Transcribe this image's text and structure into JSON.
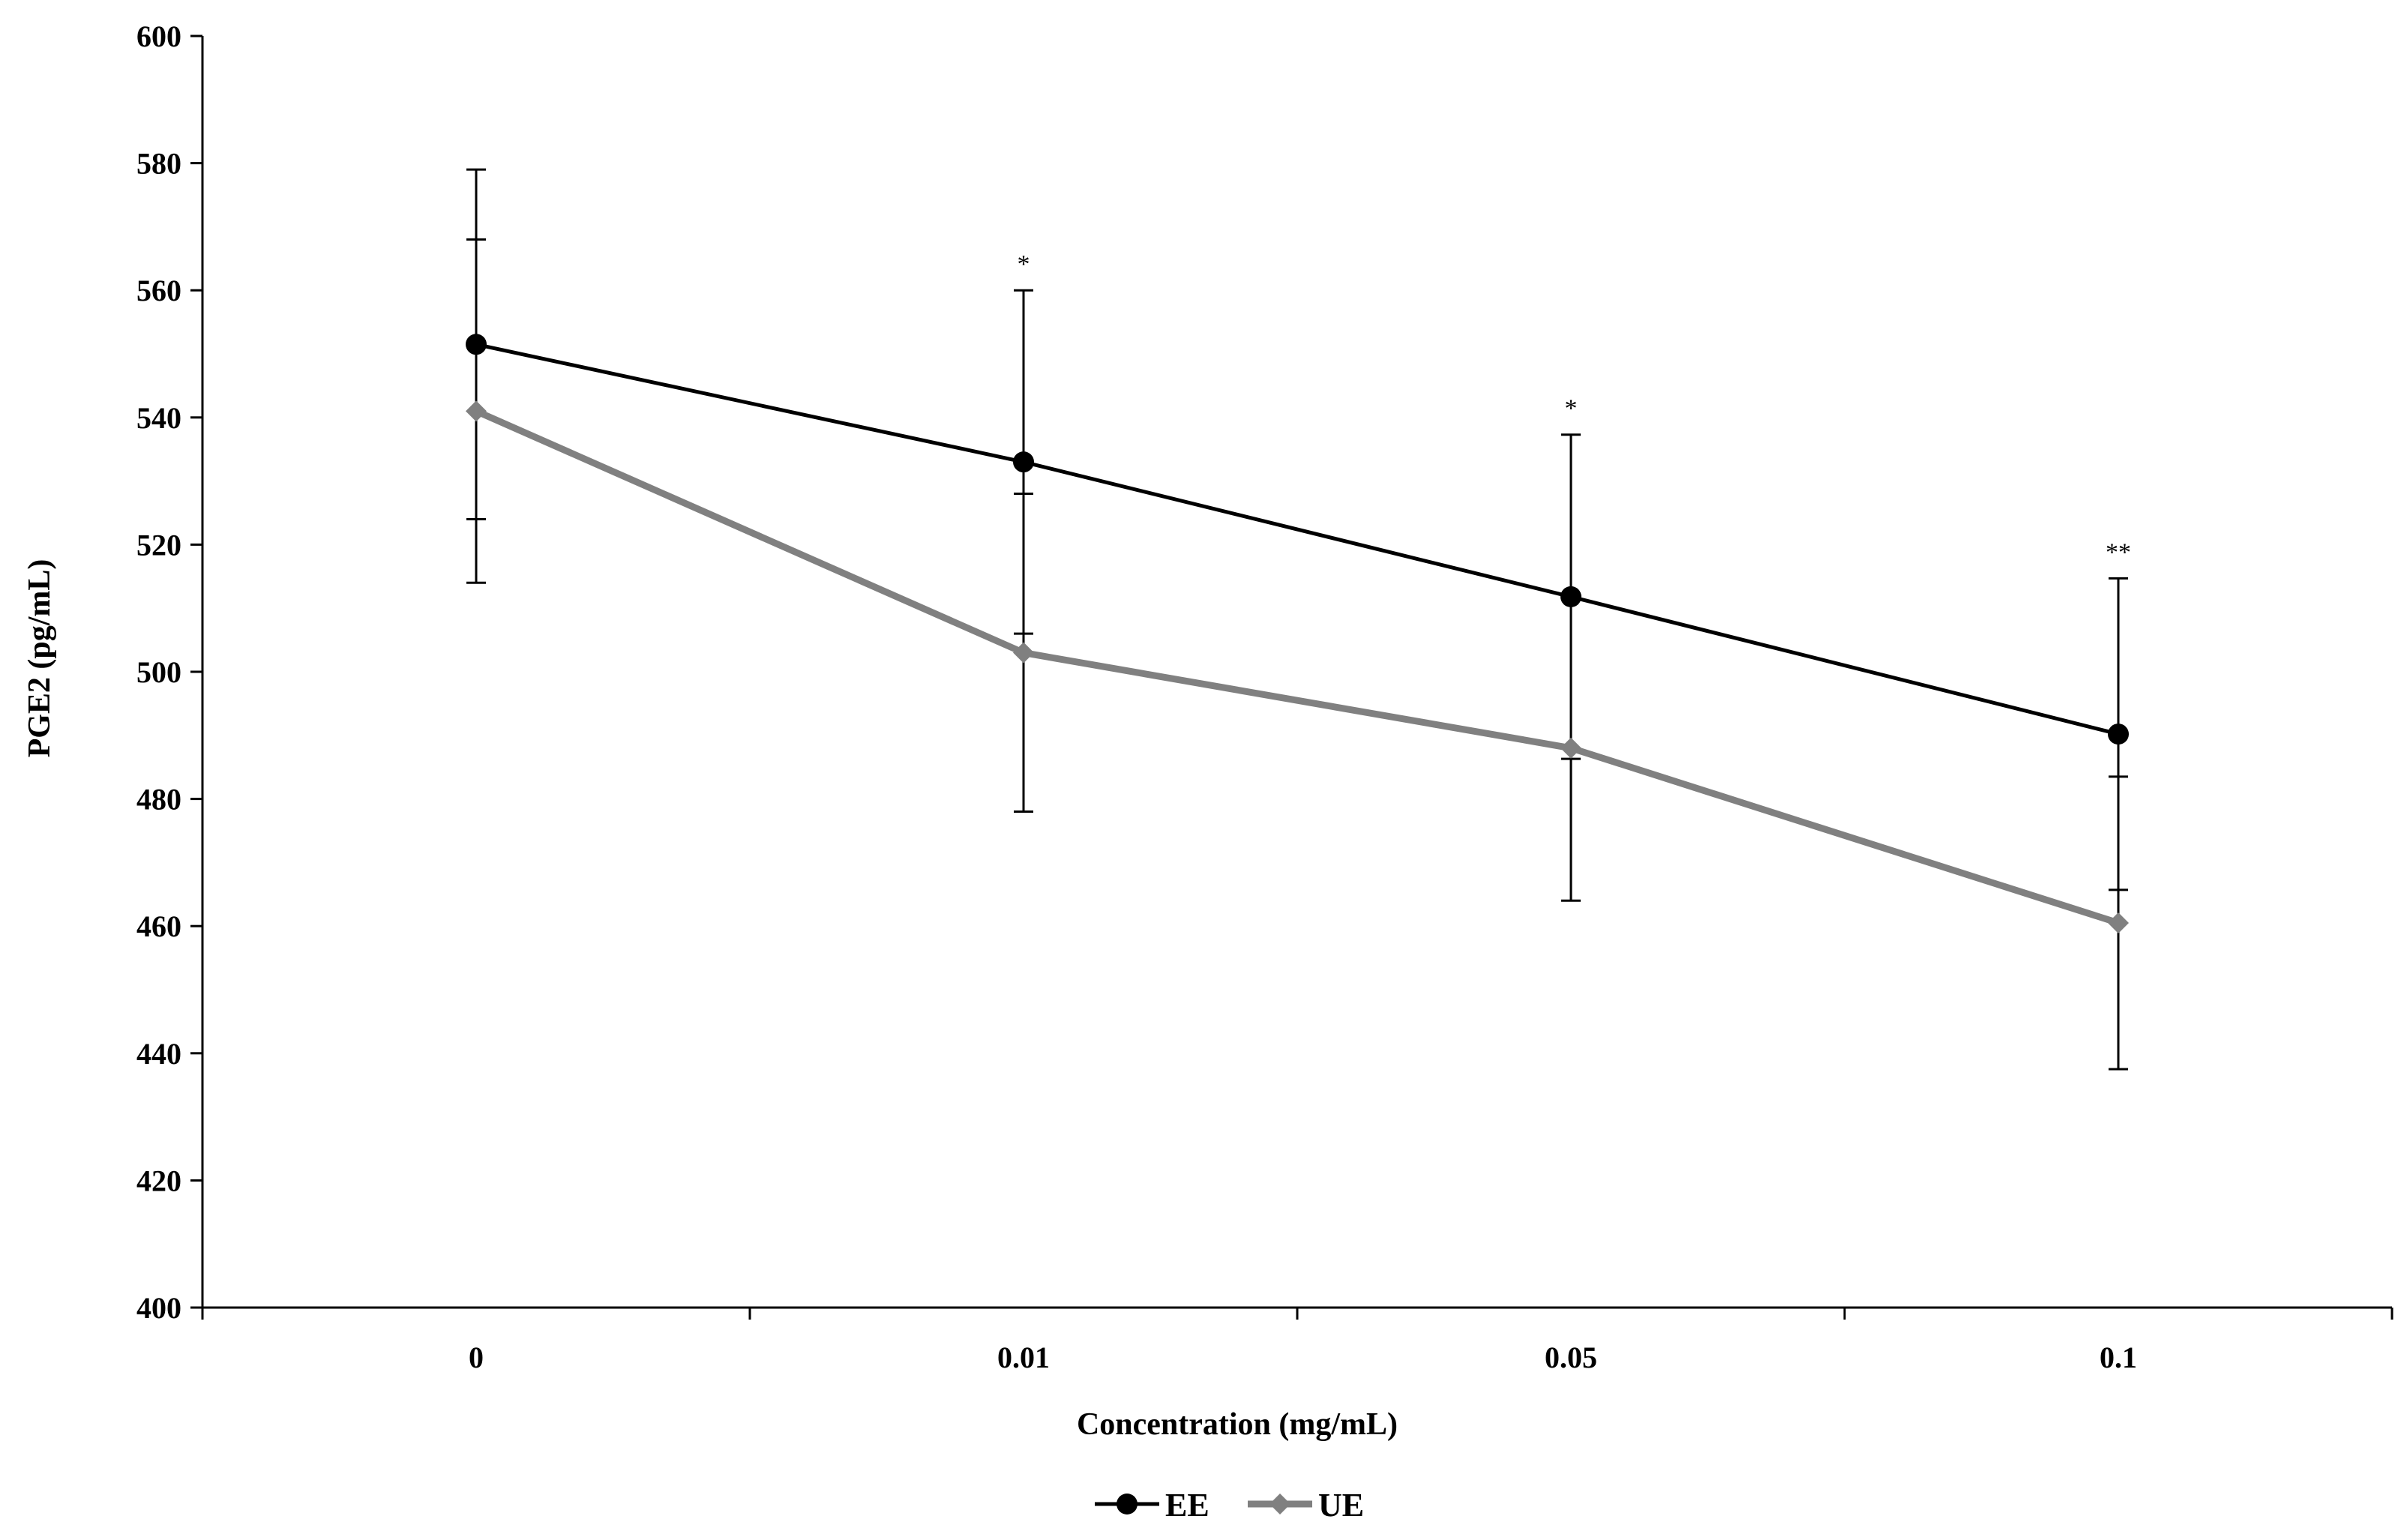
{
  "chart_data": {
    "type": "line",
    "title": "",
    "xlabel": "Concentration  (mg/mL)",
    "ylabel": "PGE2  (pg/mL)",
    "categories": [
      "0",
      "0.01",
      "0.05",
      "0.1"
    ],
    "ylim": [
      400,
      600
    ],
    "yticks": [
      400,
      420,
      440,
      460,
      480,
      500,
      520,
      540,
      560,
      580,
      600
    ],
    "yticks_labels": [
      "400",
      "420",
      "440",
      "460",
      "480",
      "500",
      "520",
      "540",
      "560",
      "580",
      "600"
    ],
    "grid": false,
    "legend_position": "bottom-center",
    "series": [
      {
        "name": "EE",
        "color": "#000000",
        "marker": "circle",
        "values": [
          551.5,
          533.0,
          511.8,
          490.2
        ],
        "error": [
          27.5,
          27.0,
          25.5,
          24.5
        ]
      },
      {
        "name": "UE",
        "color": "#808080",
        "marker": "diamond",
        "values": [
          541.0,
          503.0,
          488.0,
          460.5
        ],
        "error": [
          27.0,
          25.0,
          24.0,
          23.0
        ]
      }
    ],
    "annotations": [
      {
        "category": "0.01",
        "text": "*"
      },
      {
        "category": "0.05",
        "text": "*"
      },
      {
        "category": "0.1",
        "text": "**"
      }
    ]
  }
}
